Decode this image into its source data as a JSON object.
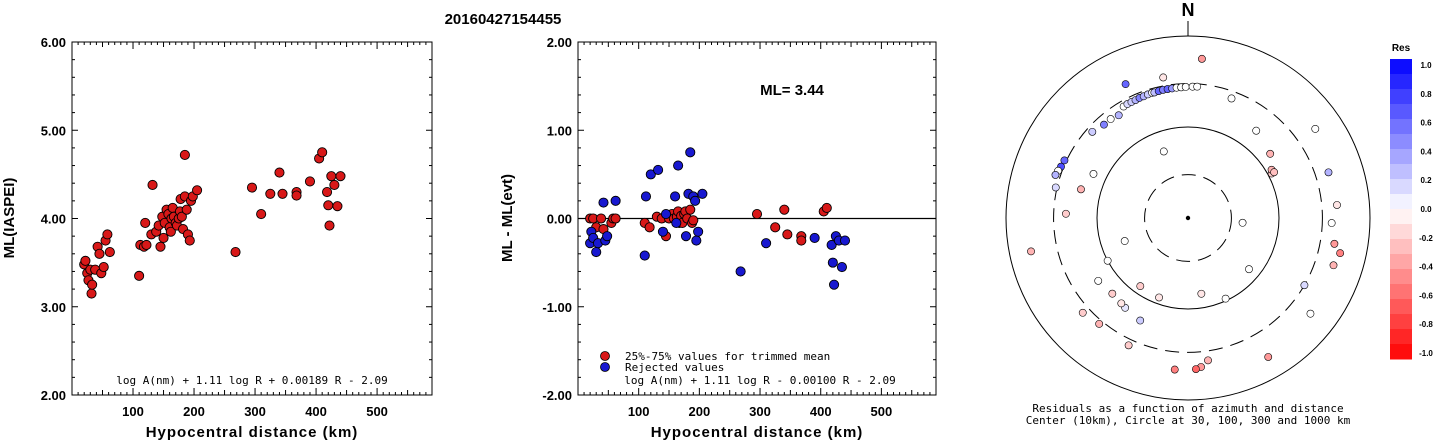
{
  "title": "20160427154455",
  "chart_data": [
    {
      "type": "scatter",
      "title": "",
      "xlabel": "Hypocentral distance (km)",
      "ylabel": "ML(IASPEI)",
      "xlim": [
        0,
        590
      ],
      "ylim": [
        2.0,
        6.0
      ],
      "x_ticks": [
        "100",
        "200",
        "300",
        "400",
        "500"
      ],
      "y_ticks": [
        "2.00",
        "3.00",
        "4.00",
        "5.00",
        "6.00"
      ],
      "formula": "log A(nm) + 1.11 log R + 0.00189 R - 2.09",
      "series": [
        {
          "color": "#d81818",
          "points": [
            [
              20,
              3.48
            ],
            [
              22,
              3.52
            ],
            [
              25,
              3.38
            ],
            [
              27,
              3.3
            ],
            [
              30,
              3.42
            ],
            [
              32,
              3.15
            ],
            [
              33,
              3.25
            ],
            [
              38,
              3.42
            ],
            [
              42,
              3.68
            ],
            [
              45,
              3.6
            ],
            [
              48,
              3.38
            ],
            [
              52,
              3.45
            ],
            [
              55,
              3.75
            ],
            [
              58,
              3.82
            ],
            [
              62,
              3.62
            ],
            [
              110,
              3.35
            ],
            [
              112,
              3.7
            ],
            [
              118,
              3.68
            ],
            [
              120,
              3.95
            ],
            [
              122,
              3.7
            ],
            [
              130,
              3.82
            ],
            [
              132,
              4.38
            ],
            [
              138,
              3.85
            ],
            [
              142,
              3.92
            ],
            [
              145,
              3.68
            ],
            [
              148,
              4.02
            ],
            [
              150,
              3.78
            ],
            [
              152,
              3.95
            ],
            [
              155,
              4.1
            ],
            [
              158,
              4.05
            ],
            [
              160,
              3.9
            ],
            [
              162,
              3.85
            ],
            [
              163,
              4.0
            ],
            [
              165,
              4.12
            ],
            [
              167,
              4.02
            ],
            [
              170,
              3.95
            ],
            [
              172,
              3.92
            ],
            [
              175,
              4.0
            ],
            [
              177,
              4.08
            ],
            [
              178,
              4.22
            ],
            [
              180,
              4.02
            ],
            [
              182,
              3.88
            ],
            [
              185,
              4.25
            ],
            [
              185,
              4.72
            ],
            [
              188,
              4.1
            ],
            [
              190,
              3.82
            ],
            [
              193,
              3.75
            ],
            [
              195,
              4.2
            ],
            [
              198,
              4.25
            ],
            [
              205,
              4.32
            ],
            [
              268,
              3.62
            ],
            [
              295,
              4.35
            ],
            [
              310,
              4.05
            ],
            [
              325,
              4.28
            ],
            [
              340,
              4.52
            ],
            [
              345,
              4.28
            ],
            [
              368,
              4.3
            ],
            [
              368,
              4.26
            ],
            [
              390,
              4.42
            ],
            [
              405,
              4.68
            ],
            [
              410,
              4.75
            ],
            [
              418,
              4.3
            ],
            [
              420,
              4.15
            ],
            [
              422,
              3.92
            ],
            [
              425,
              4.48
            ],
            [
              430,
              4.38
            ],
            [
              435,
              4.14
            ],
            [
              440,
              4.48
            ]
          ]
        }
      ]
    },
    {
      "type": "scatter",
      "title": "",
      "xlabel": "Hypocentral distance (km)",
      "ylabel": "ML - ML(evt)",
      "xlim": [
        0,
        590
      ],
      "ylim": [
        -2.0,
        2.0
      ],
      "x_ticks": [
        "100",
        "200",
        "300",
        "400",
        "500"
      ],
      "y_ticks": [
        "-2.00",
        "-1.00",
        "0.00",
        "1.00",
        "2.00"
      ],
      "annotation": "ML= 3.44",
      "formula": "log A(nm) + 1.11 log R - 0.00100 R - 2.09",
      "series": [
        {
          "name": "25%-75% values for trimmed mean",
          "color": "#d81818",
          "points": [
            [
              20,
              0.0
            ],
            [
              25,
              0.0
            ],
            [
              30,
              -0.1
            ],
            [
              38,
              0.0
            ],
            [
              42,
              -0.12
            ],
            [
              55,
              -0.05
            ],
            [
              58,
              0.0
            ],
            [
              62,
              0.0
            ],
            [
              110,
              -0.05
            ],
            [
              118,
              -0.1
            ],
            [
              130,
              0.02
            ],
            [
              138,
              0.0
            ],
            [
              145,
              -0.2
            ],
            [
              150,
              0.0
            ],
            [
              155,
              0.05
            ],
            [
              158,
              0.0
            ],
            [
              163,
              0.02
            ],
            [
              165,
              0.08
            ],
            [
              167,
              -0.05
            ],
            [
              170,
              0.03
            ],
            [
              172,
              -0.05
            ],
            [
              175,
              0.05
            ],
            [
              177,
              0.08
            ],
            [
              180,
              0.0
            ],
            [
              185,
              0.1
            ],
            [
              188,
              -0.05
            ],
            [
              190,
              -0.02
            ],
            [
              295,
              0.05
            ],
            [
              325,
              -0.1
            ],
            [
              340,
              0.1
            ],
            [
              345,
              -0.18
            ],
            [
              368,
              -0.2
            ],
            [
              368,
              -0.25
            ],
            [
              405,
              0.08
            ],
            [
              410,
              0.12
            ]
          ]
        },
        {
          "name": "Rejected values",
          "color": "#1818d0",
          "points": [
            [
              20,
              -0.28
            ],
            [
              22,
              -0.15
            ],
            [
              25,
              -0.22
            ],
            [
              30,
              -0.38
            ],
            [
              33,
              -0.28
            ],
            [
              42,
              0.18
            ],
            [
              45,
              -0.25
            ],
            [
              48,
              -0.2
            ],
            [
              62,
              0.2
            ],
            [
              110,
              -0.42
            ],
            [
              112,
              0.25
            ],
            [
              120,
              0.5
            ],
            [
              132,
              0.55
            ],
            [
              140,
              -0.15
            ],
            [
              145,
              0.05
            ],
            [
              160,
              0.25
            ],
            [
              162,
              -0.05
            ],
            [
              165,
              0.6
            ],
            [
              178,
              -0.2
            ],
            [
              182,
              0.28
            ],
            [
              185,
              0.75
            ],
            [
              190,
              0.25
            ],
            [
              193,
              0.2
            ],
            [
              195,
              -0.25
            ],
            [
              198,
              -0.15
            ],
            [
              205,
              0.28
            ],
            [
              268,
              -0.6
            ],
            [
              310,
              -0.28
            ],
            [
              390,
              -0.22
            ],
            [
              418,
              -0.3
            ],
            [
              420,
              -0.5
            ],
            [
              422,
              -0.75
            ],
            [
              425,
              -0.2
            ],
            [
              430,
              -0.25
            ],
            [
              435,
              -0.55
            ],
            [
              440,
              -0.25
            ]
          ]
        }
      ]
    },
    {
      "type": "polar-scatter",
      "north_label": "N",
      "caption_line1": "Residuals as a function of azimuth and distance",
      "caption_line2": "Center (10km), Circle at 30, 100, 300 and 1000 km",
      "rings_km": [
        30,
        100,
        300,
        1000
      ],
      "points": [
        {
          "az": 340,
          "d": 60,
          "res": 0.0
        },
        {
          "az": 170,
          "d": 70,
          "res": -0.1
        },
        {
          "az": 250,
          "d": 55,
          "res": 0.05
        },
        {
          "az": 95,
          "d": 40,
          "res": 0.0
        },
        {
          "az": 130,
          "d": 75,
          "res": 0.0
        },
        {
          "az": 215,
          "d": 82,
          "res": -0.2
        },
        {
          "az": 200,
          "d": 85,
          "res": -0.1
        },
        {
          "az": 155,
          "d": 95,
          "res": 0.0
        },
        {
          "az": 62,
          "d": 110,
          "res": -0.2
        },
        {
          "az": 60,
          "d": 115,
          "res": -0.3
        },
        {
          "az": 62,
          "d": 118,
          "res": -0.25
        },
        {
          "az": 52,
          "d": 140,
          "res": -0.3
        },
        {
          "az": 38,
          "d": 165,
          "res": 0.0
        },
        {
          "az": 295,
          "d": 140,
          "res": 0.0
        },
        {
          "az": 285,
          "d": 165,
          "res": -0.3
        },
        {
          "az": 225,
          "d": 150,
          "res": -0.2
        },
        {
          "az": 215,
          "d": 160,
          "res": 0.1
        },
        {
          "az": 218,
          "d": 155,
          "res": -0.1
        },
        {
          "az": 205,
          "d": 175,
          "res": 0.2
        },
        {
          "az": 235,
          "d": 160,
          "res": 0.0
        },
        {
          "az": 330,
          "d": 260,
          "res": 0.0
        },
        {
          "az": 332,
          "d": 262,
          "res": 0.15
        },
        {
          "az": 334,
          "d": 262,
          "res": 0.2
        },
        {
          "az": 336,
          "d": 262,
          "res": 0.3
        },
        {
          "az": 338,
          "d": 265,
          "res": 0.5
        },
        {
          "az": 340,
          "d": 265,
          "res": 0.3
        },
        {
          "az": 342,
          "d": 268,
          "res": 0.2
        },
        {
          "az": 344,
          "d": 270,
          "res": 0.0
        },
        {
          "az": 345,
          "d": 268,
          "res": 0.25
        },
        {
          "az": 347,
          "d": 270,
          "res": 0.6
        },
        {
          "az": 349,
          "d": 272,
          "res": 0.5
        },
        {
          "az": 351,
          "d": 272,
          "res": 0.6
        },
        {
          "az": 353,
          "d": 272,
          "res": 0.4
        },
        {
          "az": 355,
          "d": 274,
          "res": 0.0
        },
        {
          "az": 357,
          "d": 274,
          "res": 0.0
        },
        {
          "az": 359,
          "d": 276,
          "res": 0.0
        },
        {
          "az": 2,
          "d": 278,
          "res": 0.0
        },
        {
          "az": 4,
          "d": 280,
          "res": 0.0
        },
        {
          "az": 326,
          "d": 230,
          "res": 0.3
        },
        {
          "az": 322,
          "d": 240,
          "res": 0.0
        },
        {
          "az": 318,
          "d": 240,
          "res": 0.5
        },
        {
          "az": 312,
          "d": 260,
          "res": 0.2
        },
        {
          "az": 295,
          "d": 315,
          "res": 0.6
        },
        {
          "az": 292,
          "d": 320,
          "res": 0.7
        },
        {
          "az": 290,
          "d": 330,
          "res": 0.0
        },
        {
          "az": 288,
          "d": 340,
          "res": 0.3
        },
        {
          "az": 335,
          "d": 420,
          "res": 0.6
        },
        {
          "az": 350,
          "d": 370,
          "res": -0.1
        },
        {
          "az": 5,
          "d": 570,
          "res": -0.4
        },
        {
          "az": 20,
          "d": 250,
          "res": 0.0
        },
        {
          "az": 55,
          "d": 510,
          "res": 0.0
        },
        {
          "az": 72,
          "d": 420,
          "res": 0.3
        },
        {
          "az": 85,
          "d": 440,
          "res": -0.1
        },
        {
          "az": 92,
          "d": 380,
          "res": 0.0
        },
        {
          "az": 100,
          "d": 430,
          "res": -0.4
        },
        {
          "az": 103,
          "d": 520,
          "res": -0.5
        },
        {
          "az": 108,
          "d": 480,
          "res": -0.3
        },
        {
          "az": 120,
          "d": 300,
          "res": 0.15
        },
        {
          "az": 128,
          "d": 510,
          "res": 0.0
        },
        {
          "az": 150,
          "d": 580,
          "res": -0.4
        },
        {
          "az": 172,
          "d": 380,
          "res": -0.3
        },
        {
          "az": 175,
          "d": 440,
          "res": -0.4
        },
        {
          "az": 177,
          "d": 460,
          "res": -0.6
        },
        {
          "az": 185,
          "d": 470,
          "res": -0.5
        },
        {
          "az": 205,
          "d": 350,
          "res": -0.2
        },
        {
          "az": 220,
          "d": 330,
          "res": -0.3
        },
        {
          "az": 228,
          "d": 360,
          "res": -0.2
        },
        {
          "az": 258,
          "d": 580,
          "res": -0.3
        },
        {
          "az": 272,
          "d": 220,
          "res": -0.2
        },
        {
          "az": 242,
          "d": 100,
          "res": 0.0
        },
        {
          "az": 283,
          "d": 310,
          "res": 0.15
        }
      ]
    }
  ],
  "colorbar": {
    "title": "Res",
    "ticks": [
      "1.0",
      "0.8",
      "0.6",
      "0.4",
      "0.2",
      "0.0",
      "-0.2",
      "-0.4",
      "-0.6",
      "-0.8",
      "-1.0"
    ]
  }
}
